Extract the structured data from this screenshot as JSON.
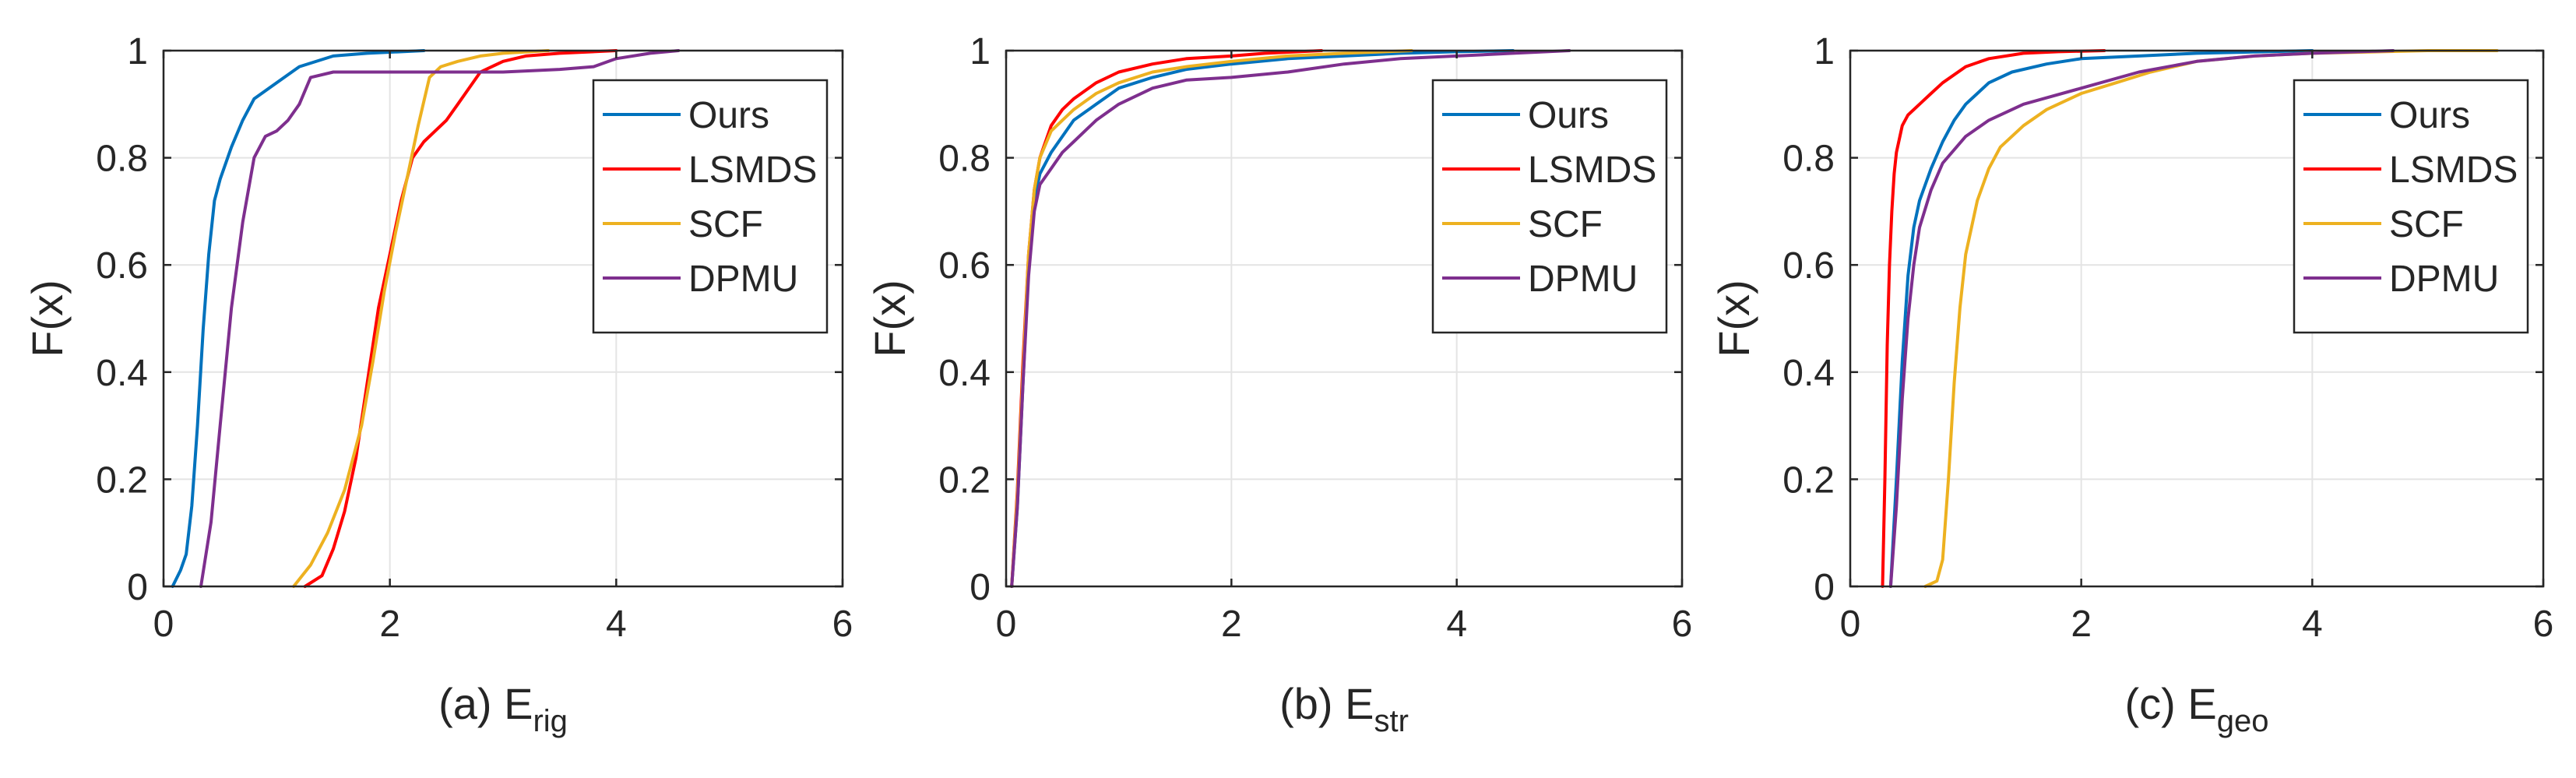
{
  "figure": {
    "legend_entries": [
      "Ours",
      "LSMDS",
      "SCF",
      "DPMU"
    ],
    "series_colors": {
      "Ours": "#0072BD",
      "LSMDS": "#FF0000",
      "SCF": "#EDB120",
      "DPMU": "#7E2F8E"
    }
  },
  "chart_data": [
    {
      "type": "line",
      "panel_label": "(a) E",
      "subscript": "rig",
      "ylabel": "F(x)",
      "xlabel": "",
      "xlim": [
        0,
        6
      ],
      "ylim": [
        0,
        1
      ],
      "xticks": [
        0,
        2,
        4,
        6
      ],
      "yticks": [
        0,
        0.2,
        0.4,
        0.6,
        0.8,
        1
      ],
      "xtick_labels": [
        "0",
        "2",
        "4",
        "6"
      ],
      "ytick_labels": [
        "0",
        "0.2",
        "0.4",
        "0.6",
        "0.8",
        "1"
      ],
      "grid": true,
      "legend_position": "top-right",
      "series": [
        {
          "name": "Ours",
          "x": [
            0.08,
            0.15,
            0.2,
            0.25,
            0.3,
            0.35,
            0.4,
            0.45,
            0.5,
            0.6,
            0.7,
            0.8,
            1.0,
            1.2,
            1.5,
            1.8,
            2.3
          ],
          "y": [
            0,
            0.03,
            0.06,
            0.15,
            0.3,
            0.48,
            0.62,
            0.72,
            0.76,
            0.82,
            0.87,
            0.91,
            0.94,
            0.97,
            0.99,
            0.995,
            1.0
          ]
        },
        {
          "name": "LSMDS",
          "x": [
            1.25,
            1.4,
            1.5,
            1.6,
            1.7,
            1.8,
            1.9,
            2.0,
            2.1,
            2.2,
            2.3,
            2.5,
            2.6,
            2.8,
            3.0,
            3.2,
            3.5,
            4.0
          ],
          "y": [
            0,
            0.02,
            0.07,
            0.14,
            0.24,
            0.38,
            0.52,
            0.62,
            0.72,
            0.8,
            0.83,
            0.87,
            0.9,
            0.96,
            0.98,
            0.99,
            0.995,
            1.0
          ]
        },
        {
          "name": "SCF",
          "x": [
            1.15,
            1.3,
            1.45,
            1.6,
            1.75,
            1.85,
            1.95,
            2.05,
            2.15,
            2.25,
            2.35,
            2.45,
            2.6,
            2.8,
            3.0,
            3.4
          ],
          "y": [
            0,
            0.04,
            0.1,
            0.18,
            0.3,
            0.42,
            0.55,
            0.66,
            0.76,
            0.86,
            0.95,
            0.97,
            0.98,
            0.99,
            0.995,
            1.0
          ]
        },
        {
          "name": "DPMU",
          "x": [
            0.33,
            0.42,
            0.5,
            0.6,
            0.7,
            0.8,
            0.9,
            1.0,
            1.1,
            1.2,
            1.3,
            1.5,
            2.0,
            3.0,
            3.5,
            3.8,
            4.0,
            4.3,
            4.55
          ],
          "y": [
            0,
            0.12,
            0.3,
            0.52,
            0.68,
            0.8,
            0.84,
            0.85,
            0.87,
            0.9,
            0.95,
            0.96,
            0.96,
            0.96,
            0.965,
            0.97,
            0.985,
            0.995,
            1.0
          ]
        }
      ]
    },
    {
      "type": "line",
      "panel_label": "(b) E",
      "subscript": "str",
      "ylabel": "F(x)",
      "xlabel": "",
      "xlim": [
        0,
        6
      ],
      "ylim": [
        0,
        1
      ],
      "xticks": [
        0,
        2,
        4,
        6
      ],
      "yticks": [
        0,
        0.2,
        0.4,
        0.6,
        0.8,
        1
      ],
      "xtick_labels": [
        "0",
        "2",
        "4",
        "6"
      ],
      "ytick_labels": [
        "0",
        "0.2",
        "0.4",
        "0.6",
        "0.8",
        "1"
      ],
      "grid": true,
      "legend_position": "top-right",
      "series": [
        {
          "name": "Ours",
          "x": [
            0.05,
            0.1,
            0.15,
            0.2,
            0.25,
            0.3,
            0.4,
            0.5,
            0.6,
            0.8,
            1.0,
            1.3,
            1.6,
            2.0,
            2.5,
            3.0,
            3.5,
            4.0,
            4.5
          ],
          "y": [
            0,
            0.15,
            0.38,
            0.6,
            0.72,
            0.77,
            0.81,
            0.84,
            0.87,
            0.9,
            0.93,
            0.95,
            0.965,
            0.975,
            0.985,
            0.99,
            0.995,
            0.998,
            1.0
          ]
        },
        {
          "name": "LSMDS",
          "x": [
            0.05,
            0.1,
            0.15,
            0.2,
            0.25,
            0.3,
            0.4,
            0.5,
            0.6,
            0.8,
            1.0,
            1.3,
            1.6,
            2.0,
            2.3,
            2.8
          ],
          "y": [
            0,
            0.18,
            0.42,
            0.62,
            0.74,
            0.8,
            0.86,
            0.89,
            0.91,
            0.94,
            0.96,
            0.975,
            0.985,
            0.99,
            0.995,
            1.0
          ]
        },
        {
          "name": "SCF",
          "x": [
            0.05,
            0.1,
            0.15,
            0.2,
            0.25,
            0.3,
            0.4,
            0.5,
            0.6,
            0.8,
            1.0,
            1.3,
            1.6,
            2.0,
            2.5,
            3.0,
            3.6
          ],
          "y": [
            0,
            0.17,
            0.4,
            0.62,
            0.74,
            0.8,
            0.85,
            0.87,
            0.89,
            0.92,
            0.94,
            0.96,
            0.97,
            0.98,
            0.99,
            0.995,
            1.0
          ]
        },
        {
          "name": "DPMU",
          "x": [
            0.05,
            0.1,
            0.15,
            0.2,
            0.25,
            0.3,
            0.4,
            0.5,
            0.6,
            0.8,
            1.0,
            1.3,
            1.6,
            2.0,
            2.5,
            3.0,
            3.5,
            4.0,
            4.5,
            5.0
          ],
          "y": [
            0,
            0.15,
            0.38,
            0.58,
            0.7,
            0.75,
            0.78,
            0.81,
            0.83,
            0.87,
            0.9,
            0.93,
            0.945,
            0.95,
            0.96,
            0.975,
            0.985,
            0.99,
            0.995,
            1.0
          ]
        }
      ]
    },
    {
      "type": "line",
      "panel_label": "(c) E",
      "subscript": "geo",
      "ylabel": "F(x)",
      "xlabel": "",
      "xlim": [
        0,
        6
      ],
      "ylim": [
        0,
        1
      ],
      "xticks": [
        0,
        2,
        4,
        6
      ],
      "yticks": [
        0,
        0.2,
        0.4,
        0.6,
        0.8,
        1
      ],
      "xtick_labels": [
        "0",
        "2",
        "4",
        "6"
      ],
      "ytick_labels": [
        "0",
        "0.2",
        "0.4",
        "0.6",
        "0.8",
        "1"
      ],
      "grid": true,
      "legend_position": "top-right",
      "series": [
        {
          "name": "Ours",
          "x": [
            0.35,
            0.4,
            0.45,
            0.5,
            0.55,
            0.6,
            0.7,
            0.8,
            0.9,
            1.0,
            1.2,
            1.4,
            1.7,
            2.0,
            2.5,
            3.0,
            3.6,
            4.0
          ],
          "y": [
            0,
            0.2,
            0.42,
            0.58,
            0.67,
            0.72,
            0.78,
            0.83,
            0.87,
            0.9,
            0.94,
            0.96,
            0.975,
            0.985,
            0.99,
            0.995,
            0.998,
            1.0
          ]
        },
        {
          "name": "LSMDS",
          "x": [
            0.28,
            0.3,
            0.32,
            0.34,
            0.36,
            0.38,
            0.4,
            0.45,
            0.5,
            0.6,
            0.7,
            0.8,
            1.0,
            1.2,
            1.5,
            1.8,
            2.2
          ],
          "y": [
            0,
            0.2,
            0.45,
            0.6,
            0.7,
            0.77,
            0.81,
            0.86,
            0.88,
            0.9,
            0.92,
            0.94,
            0.97,
            0.985,
            0.995,
            0.998,
            1.0
          ]
        },
        {
          "name": "SCF",
          "x": [
            0.65,
            0.75,
            0.8,
            0.85,
            0.9,
            0.95,
            1.0,
            1.1,
            1.2,
            1.3,
            1.5,
            1.7,
            2.0,
            2.3,
            2.6,
            3.0,
            3.5,
            4.0,
            4.6,
            5.0,
            5.6
          ],
          "y": [
            0,
            0.01,
            0.05,
            0.2,
            0.38,
            0.52,
            0.62,
            0.72,
            0.78,
            0.82,
            0.86,
            0.89,
            0.92,
            0.94,
            0.96,
            0.98,
            0.99,
            0.995,
            0.998,
            1.0,
            1.0
          ]
        },
        {
          "name": "DPMU",
          "x": [
            0.35,
            0.4,
            0.45,
            0.5,
            0.55,
            0.6,
            0.7,
            0.8,
            1.0,
            1.2,
            1.5,
            2.0,
            2.5,
            3.0,
            3.5,
            4.0,
            4.7
          ],
          "y": [
            0,
            0.15,
            0.35,
            0.5,
            0.6,
            0.67,
            0.74,
            0.79,
            0.84,
            0.87,
            0.9,
            0.93,
            0.96,
            0.98,
            0.99,
            0.995,
            1.0
          ]
        }
      ]
    }
  ]
}
